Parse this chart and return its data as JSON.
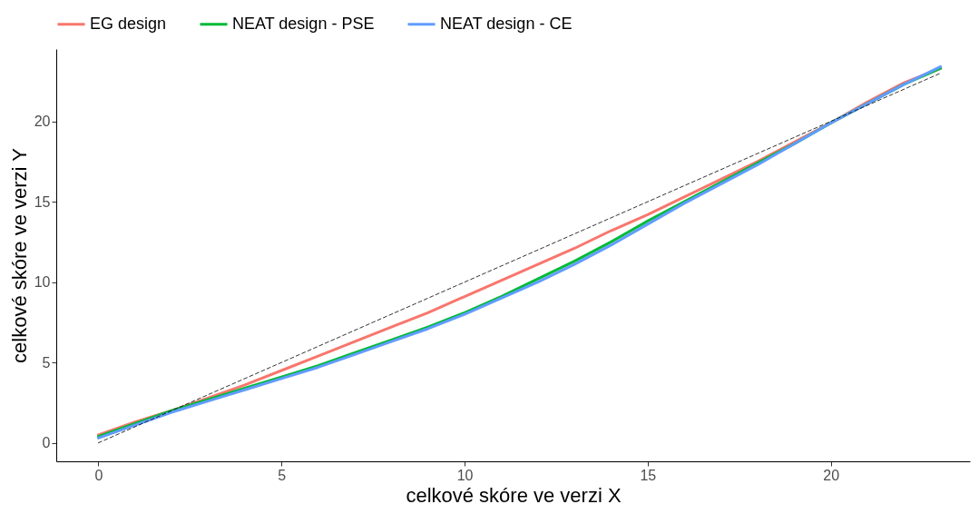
{
  "chart_data": {
    "type": "line",
    "xlabel": "celkové skóre ve verzi X",
    "ylabel": "celkové skóre ve verzi Y",
    "x": [
      0,
      1,
      2,
      3,
      4,
      5,
      6,
      7,
      8,
      9,
      10,
      11,
      12,
      13,
      14,
      15,
      16,
      17,
      18,
      19,
      20,
      21,
      22,
      23
    ],
    "series": [
      {
        "name": "EG design",
        "color": "#f8766d",
        "values": [
          0.5,
          1.3,
          2.0,
          2.8,
          3.6,
          4.5,
          5.4,
          6.3,
          7.2,
          8.1,
          9.1,
          10.1,
          11.1,
          12.1,
          13.2,
          14.2,
          15.3,
          16.4,
          17.5,
          18.7,
          19.9,
          21.2,
          22.4,
          23.3
        ]
      },
      {
        "name": "NEAT design - PSE",
        "color": "#00ba38",
        "values": [
          0.4,
          1.2,
          2.0,
          2.7,
          3.4,
          4.1,
          4.8,
          5.6,
          6.4,
          7.2,
          8.1,
          9.1,
          10.2,
          11.3,
          12.5,
          13.8,
          15.0,
          16.2,
          17.4,
          18.6,
          19.9,
          21.1,
          22.3,
          23.3
        ]
      },
      {
        "name": "NEAT design - CE",
        "color": "#619cff",
        "values": [
          0.3,
          1.1,
          1.9,
          2.6,
          3.3,
          4.0,
          4.7,
          5.5,
          6.3,
          7.1,
          8.0,
          9.0,
          10.0,
          11.1,
          12.3,
          13.6,
          14.9,
          16.1,
          17.3,
          18.6,
          19.9,
          21.1,
          22.3,
          23.4
        ]
      },
      {
        "type": "line",
        "color": "#000000",
        "line_style": "dashed",
        "x": [
          0,
          23
        ],
        "values": [
          0,
          23
        ]
      }
    ],
    "xlim": [
      -1.15,
      23.8
    ],
    "ylim": [
      -1.15,
      24.5
    ],
    "xticks": [
      0,
      5,
      10,
      15,
      20
    ],
    "yticks": [
      0,
      5,
      10,
      15,
      20
    ],
    "grid": false,
    "legend": "top",
    "line_style": "solid",
    "marker": "none"
  }
}
